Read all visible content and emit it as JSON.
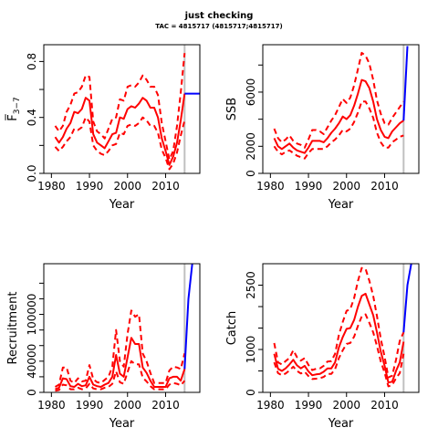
{
  "figure": {
    "title": "just checking",
    "subtitle": "TAC = 4815717 (4815717;4815717)"
  },
  "colors": {
    "estimate": "#ff0000",
    "projection": "#0000ff",
    "current_year_line": "#c0c0c0"
  },
  "chart_data": [
    {
      "id": "fbar",
      "type": "line",
      "xlabel": "Year",
      "ylabel": "F̅",
      "ylabel_sub": "3−7",
      "xlim": [
        1978,
        2019
      ],
      "ylim": [
        0,
        0.92
      ],
      "xticks": [
        1980,
        1990,
        2000,
        2010
      ],
      "yticks": [
        0.0,
        0.2,
        0.4,
        0.6,
        0.8
      ],
      "ytick_labels": [
        "0.0",
        "",
        "0.4",
        "",
        "0.8"
      ],
      "current_year": 2015,
      "x": [
        1981,
        1982,
        1983,
        1984,
        1985,
        1986,
        1987,
        1988,
        1989,
        1990,
        1991,
        1992,
        1993,
        1994,
        1995,
        1996,
        1997,
        1998,
        1999,
        2000,
        2001,
        2002,
        2003,
        2004,
        2005,
        2006,
        2007,
        2008,
        2009,
        2010,
        2011,
        2012,
        2013,
        2014,
        2015
      ],
      "series": [
        {
          "role": "estimate",
          "values": [
            0.26,
            0.22,
            0.26,
            0.32,
            0.36,
            0.44,
            0.43,
            0.46,
            0.54,
            0.52,
            0.28,
            0.22,
            0.2,
            0.18,
            0.23,
            0.28,
            0.29,
            0.4,
            0.39,
            0.46,
            0.48,
            0.47,
            0.5,
            0.54,
            0.52,
            0.47,
            0.47,
            0.4,
            0.25,
            0.16,
            0.06,
            0.12,
            0.22,
            0.38,
            0.57
          ]
        },
        {
          "role": "upper",
          "values": [
            0.34,
            0.3,
            0.34,
            0.44,
            0.49,
            0.57,
            0.58,
            0.62,
            0.7,
            0.69,
            0.37,
            0.3,
            0.28,
            0.25,
            0.32,
            0.39,
            0.4,
            0.53,
            0.52,
            0.62,
            0.63,
            0.62,
            0.65,
            0.7,
            0.67,
            0.62,
            0.62,
            0.56,
            0.36,
            0.23,
            0.1,
            0.16,
            0.34,
            0.58,
            0.86
          ]
        },
        {
          "role": "lower",
          "values": [
            0.19,
            0.16,
            0.19,
            0.23,
            0.26,
            0.32,
            0.31,
            0.33,
            0.4,
            0.37,
            0.2,
            0.16,
            0.14,
            0.13,
            0.16,
            0.2,
            0.21,
            0.29,
            0.28,
            0.34,
            0.35,
            0.34,
            0.36,
            0.4,
            0.38,
            0.34,
            0.34,
            0.29,
            0.17,
            0.11,
            0.03,
            0.07,
            0.15,
            0.27,
            0.38
          ]
        }
      ],
      "projection": {
        "x": [
          2015,
          2019
        ],
        "values": [
          0.57,
          0.57
        ]
      }
    },
    {
      "id": "ssb",
      "type": "line",
      "xlabel": "Year",
      "ylabel": "SSB",
      "xlim": [
        1978,
        2019
      ],
      "ylim": [
        0,
        9500
      ],
      "xticks": [
        1980,
        1990,
        2000,
        2010
      ],
      "yticks": [
        0,
        2000,
        4000,
        6000,
        8000
      ],
      "ytick_labels": [
        "0",
        "2000",
        "",
        "6000",
        ""
      ],
      "current_year": 2015,
      "x": [
        1981,
        1982,
        1983,
        1984,
        1985,
        1986,
        1987,
        1988,
        1989,
        1990,
        1991,
        1992,
        1993,
        1994,
        1995,
        1996,
        1997,
        1998,
        1999,
        2000,
        2001,
        2002,
        2003,
        2004,
        2005,
        2006,
        2007,
        2008,
        2009,
        2010,
        2011,
        2012,
        2013,
        2014,
        2015
      ],
      "series": [
        {
          "role": "estimate",
          "values": [
            2600,
            2000,
            1800,
            2000,
            2200,
            1900,
            1700,
            1600,
            1500,
            1900,
            2400,
            2400,
            2400,
            2300,
            2600,
            3000,
            3300,
            3700,
            4200,
            4000,
            4300,
            5000,
            5900,
            6900,
            6800,
            6300,
            5300,
            4000,
            3200,
            2700,
            2600,
            3100,
            3400,
            3700,
            3900
          ]
        },
        {
          "role": "upper",
          "values": [
            3300,
            2600,
            2300,
            2500,
            2800,
            2400,
            2200,
            2100,
            1900,
            2500,
            3200,
            3200,
            3100,
            2900,
            3400,
            3900,
            4300,
            4900,
            5500,
            5200,
            5600,
            6500,
            7700,
            8900,
            8700,
            8100,
            6900,
            5400,
            4400,
            3700,
            3600,
            4100,
            4500,
            4900,
            5300
          ]
        },
        {
          "role": "lower",
          "values": [
            2000,
            1600,
            1400,
            1600,
            1700,
            1500,
            1300,
            1200,
            1100,
            1500,
            1800,
            1800,
            1800,
            1800,
            2000,
            2300,
            2500,
            2800,
            3200,
            3100,
            3300,
            3800,
            4500,
            5300,
            5300,
            4800,
            4100,
            3000,
            2300,
            1900,
            1900,
            2300,
            2500,
            2700,
            2800
          ]
        }
      ],
      "projection": {
        "x": [
          2015,
          2016
        ],
        "values": [
          3900,
          9400
        ]
      }
    },
    {
      "id": "recruitment",
      "type": "line",
      "xlabel": "Year",
      "ylabel": "Recruitment",
      "xlim": [
        1978,
        2019
      ],
      "ylim": [
        0,
        165000
      ],
      "xticks": [
        1980,
        1990,
        2000,
        2010
      ],
      "yticks": [
        0,
        20000,
        40000,
        60000,
        80000,
        100000,
        120000,
        140000
      ],
      "ytick_labels": [
        "0",
        "",
        "40000",
        "",
        "",
        "100000",
        "",
        ""
      ],
      "current_year": 2015,
      "x": [
        1981,
        1982,
        1983,
        1984,
        1985,
        1986,
        1987,
        1988,
        1989,
        1990,
        1991,
        1992,
        1993,
        1994,
        1995,
        1996,
        1997,
        1998,
        1999,
        2000,
        2001,
        2002,
        2003,
        2004,
        2005,
        2006,
        2007,
        2008,
        2009,
        2010,
        2011,
        2012,
        2013,
        2014,
        2015
      ],
      "series": [
        {
          "role": "estimate",
          "values": [
            4000,
            6000,
            18000,
            17000,
            8000,
            7000,
            11000,
            8000,
            9000,
            20000,
            10000,
            8000,
            7000,
            10000,
            12000,
            20000,
            48000,
            24000,
            20000,
            45000,
            70000,
            62000,
            62000,
            32000,
            25000,
            15000,
            7000,
            7000,
            7000,
            7000,
            18000,
            20000,
            20000,
            15000,
            30000
          ]
        },
        {
          "role": "upper",
          "values": [
            7000,
            10000,
            32000,
            32000,
            15000,
            12000,
            18000,
            14000,
            15000,
            35000,
            17000,
            13000,
            12000,
            16000,
            20000,
            33000,
            80000,
            40000,
            33000,
            75000,
            105000,
            97000,
            100000,
            50000,
            40000,
            25000,
            12000,
            12000,
            12000,
            12000,
            28000,
            33000,
            32000,
            30000,
            50000
          ]
        },
        {
          "role": "lower",
          "values": [
            2000,
            3000,
            10000,
            9000,
            4000,
            4000,
            6000,
            4000,
            5000,
            11000,
            5000,
            4000,
            4000,
            6000,
            7000,
            11000,
            27000,
            13000,
            11000,
            26000,
            40000,
            36000,
            36000,
            19000,
            14000,
            8000,
            4000,
            4000,
            4000,
            4000,
            10000,
            12000,
            11000,
            9000,
            15000
          ]
        }
      ],
      "projection": {
        "x": [
          2015,
          2016,
          2017
        ],
        "values": [
          30000,
          120000,
          165000
        ]
      }
    },
    {
      "id": "catch",
      "type": "line",
      "xlabel": "Year",
      "ylabel": "Catch",
      "xlim": [
        1978,
        2019
      ],
      "ylim": [
        0,
        3000
      ],
      "xticks": [
        1980,
        1990,
        2000,
        2010
      ],
      "yticks": [
        0,
        500,
        1000,
        1500,
        2000,
        2500
      ],
      "ytick_labels": [
        "0",
        "",
        "1000",
        "",
        "",
        "2500"
      ],
      "current_year": 2015,
      "x": [
        1981,
        1982,
        1983,
        1984,
        1985,
        1986,
        1987,
        1988,
        1989,
        1990,
        1991,
        1992,
        1993,
        1994,
        1995,
        1996,
        1997,
        1998,
        1999,
        2000,
        2001,
        2002,
        2003,
        2004,
        2005,
        2006,
        2007,
        2008,
        2009,
        2010,
        2011,
        2012,
        2013,
        2014,
        2015
      ],
      "series": [
        {
          "role": "estimate",
          "values": [
            900,
            550,
            500,
            560,
            650,
            760,
            630,
            560,
            620,
            490,
            400,
            420,
            430,
            480,
            560,
            560,
            700,
            1050,
            1290,
            1480,
            1500,
            1690,
            2000,
            2250,
            2300,
            2050,
            1800,
            1400,
            950,
            620,
            230,
            250,
            500,
            700,
            1180
          ]
        },
        {
          "role": "upper",
          "values": [
            1150,
            700,
            650,
            730,
            800,
            980,
            820,
            740,
            800,
            640,
            520,
            550,
            560,
            620,
            720,
            730,
            900,
            1340,
            1640,
            1900,
            1940,
            2200,
            2600,
            2900,
            2880,
            2600,
            2250,
            1780,
            1250,
            830,
            350,
            390,
            760,
            1200,
            1400
          ]
        },
        {
          "role": "lower",
          "values": [
            700,
            450,
            400,
            440,
            510,
            600,
            500,
            440,
            480,
            380,
            310,
            320,
            330,
            360,
            430,
            430,
            540,
            800,
            980,
            1130,
            1150,
            1300,
            1550,
            1770,
            1820,
            1620,
            1400,
            1080,
            720,
            460,
            140,
            170,
            330,
            450,
            900
          ]
        }
      ],
      "projection": {
        "x": [
          2015,
          2016,
          2017
        ],
        "values": [
          1400,
          2500,
          3000
        ]
      }
    }
  ]
}
